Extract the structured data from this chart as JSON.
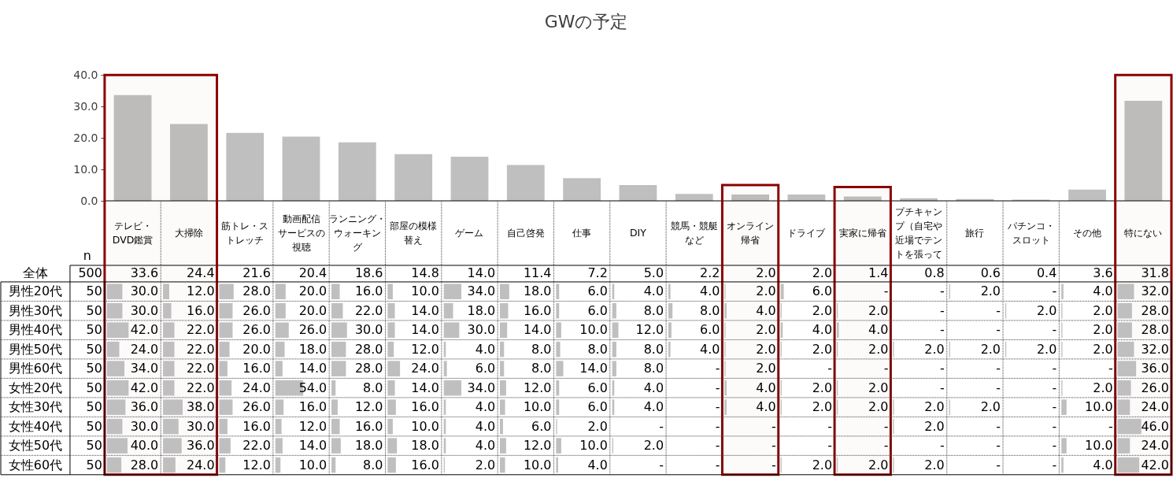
{
  "chart_data": [
    {
      "type": "bar",
      "title": "GWの予定",
      "categories": [
        "テレビ・DVD鑑賞",
        "大掃除",
        "筋トレ・ストレッチ",
        "動画配信サービスの視聴",
        "ランニング・ウォーキング",
        "部屋の模様替え",
        "ゲーム",
        "自己啓発",
        "仕事",
        "DIY",
        "競馬・競艇など",
        "オンライン帰省",
        "ドライブ",
        "実家に帰省",
        "プチキャンプ（自宅や近場でテントを張って",
        "旅行",
        "パチンコ・スロット",
        "その他",
        "特にない"
      ],
      "series": [
        {
          "name": "全体",
          "color": "#bfbfbf",
          "values": [
            33.6,
            24.4,
            21.6,
            20.4,
            18.6,
            14.8,
            14.0,
            11.4,
            7.2,
            5.0,
            2.2,
            2.0,
            2.0,
            1.4,
            0.8,
            0.6,
            0.4,
            3.6,
            31.8
          ],
          "value_labels": [
            "33.6",
            "24.4",
            "21.6",
            "20.4",
            "18.6",
            "14.8",
            "14.0",
            "11.4",
            "7.2",
            "5.0",
            "2.2",
            "2.0",
            "2.0",
            "1.4",
            "0.8",
            "0.6",
            "0.4",
            "3.6",
            "31.8"
          ]
        }
      ],
      "ylim": [
        0,
        40
      ],
      "yticks": [
        {
          "value": 0,
          "label": "0.0"
        },
        {
          "value": 10,
          "label": "10.0"
        },
        {
          "value": 20,
          "label": "20.0"
        },
        {
          "value": 30,
          "label": "30.0"
        },
        {
          "value": 40,
          "label": "40.0"
        }
      ],
      "bands": [
        {
          "axis": "x",
          "from": "テレビ・DVD鑑賞",
          "to": "大掃除",
          "color": "#8b0000"
        },
        {
          "axis": "x",
          "from": "オンライン帰省",
          "to": "オンライン帰省",
          "color": "#8b0000"
        },
        {
          "axis": "x",
          "from": "実家に帰省",
          "to": "実家に帰省",
          "color": "#8b0000"
        },
        {
          "axis": "x",
          "from": "特にない",
          "to": "特にない",
          "color": "#8b0000"
        }
      ],
      "annotations": [
        "n",
        "500"
      ]
    },
    {
      "type": "heatmap",
      "categories": [
        null,
        null,
        null,
        null,
        null,
        null,
        null,
        null,
        null,
        null,
        null,
        null,
        null,
        null,
        null,
        null,
        null,
        null,
        null
      ],
      "y_categories": [
        "男性20代",
        "男性30代",
        "男性40代",
        "男性50代",
        "男性60代",
        "女性20代",
        "女性30代",
        "女性40代",
        "女性50代",
        "女性60代"
      ],
      "y2_categories": [
        "50",
        "50",
        "50",
        "50",
        "50",
        "50",
        "50",
        "50",
        "50",
        "50"
      ],
      "cells": [
        [
          30.0,
          12.0,
          28.0,
          20.0,
          16.0,
          10.0,
          34.0,
          18.0,
          6.0,
          4.0,
          4.0,
          2.0,
          6.0,
          null,
          null,
          2.0,
          null,
          4.0,
          32.0
        ],
        [
          30.0,
          16.0,
          26.0,
          20.0,
          22.0,
          14.0,
          18.0,
          16.0,
          6.0,
          8.0,
          8.0,
          4.0,
          2.0,
          2.0,
          null,
          null,
          2.0,
          2.0,
          28.0
        ],
        [
          42.0,
          22.0,
          26.0,
          26.0,
          30.0,
          14.0,
          30.0,
          14.0,
          10.0,
          12.0,
          6.0,
          2.0,
          4.0,
          4.0,
          null,
          null,
          null,
          2.0,
          28.0
        ],
        [
          24.0,
          22.0,
          20.0,
          18.0,
          28.0,
          12.0,
          4.0,
          8.0,
          8.0,
          8.0,
          4.0,
          2.0,
          2.0,
          2.0,
          2.0,
          2.0,
          2.0,
          2.0,
          32.0
        ],
        [
          34.0,
          22.0,
          16.0,
          14.0,
          28.0,
          24.0,
          6.0,
          8.0,
          14.0,
          8.0,
          null,
          2.0,
          null,
          null,
          null,
          null,
          null,
          null,
          36.0
        ],
        [
          42.0,
          22.0,
          24.0,
          54.0,
          8.0,
          14.0,
          34.0,
          12.0,
          6.0,
          4.0,
          null,
          4.0,
          2.0,
          2.0,
          null,
          null,
          null,
          2.0,
          26.0
        ],
        [
          36.0,
          38.0,
          26.0,
          16.0,
          12.0,
          16.0,
          4.0,
          10.0,
          6.0,
          4.0,
          null,
          4.0,
          2.0,
          2.0,
          2.0,
          2.0,
          null,
          10.0,
          24.0
        ],
        [
          30.0,
          30.0,
          16.0,
          12.0,
          16.0,
          10.0,
          4.0,
          6.0,
          2.0,
          null,
          null,
          null,
          null,
          null,
          2.0,
          null,
          null,
          null,
          46.0
        ],
        [
          40.0,
          36.0,
          22.0,
          14.0,
          18.0,
          18.0,
          4.0,
          12.0,
          10.0,
          2.0,
          null,
          null,
          null,
          null,
          null,
          null,
          null,
          10.0,
          24.0
        ],
        [
          28.0,
          24.0,
          12.0,
          10.0,
          8.0,
          16.0,
          2.0,
          10.0,
          4.0,
          null,
          null,
          null,
          2.0,
          2.0,
          2.0,
          null,
          null,
          4.0,
          42.0
        ]
      ],
      "cell_labels": [
        [
          "30.0",
          "12.0",
          "28.0",
          "20.0",
          "16.0",
          "10.0",
          "34.0",
          "18.0",
          "6.0",
          "4.0",
          "4.0",
          "2.0",
          "6.0",
          "-",
          "-",
          "2.0",
          "-",
          "4.0",
          "32.0"
        ],
        [
          "30.0",
          "16.0",
          "26.0",
          "20.0",
          "22.0",
          "14.0",
          "18.0",
          "16.0",
          "6.0",
          "8.0",
          "8.0",
          "4.0",
          "2.0",
          "2.0",
          "-",
          "-",
          "2.0",
          "2.0",
          "28.0"
        ],
        [
          "42.0",
          "22.0",
          "26.0",
          "26.0",
          "30.0",
          "14.0",
          "30.0",
          "14.0",
          "10.0",
          "12.0",
          "6.0",
          "2.0",
          "4.0",
          "4.0",
          "-",
          "-",
          "-",
          "2.0",
          "28.0"
        ],
        [
          "24.0",
          "22.0",
          "20.0",
          "18.0",
          "28.0",
          "12.0",
          "4.0",
          "8.0",
          "8.0",
          "8.0",
          "4.0",
          "2.0",
          "2.0",
          "2.0",
          "2.0",
          "2.0",
          "2.0",
          "2.0",
          "32.0"
        ],
        [
          "34.0",
          "22.0",
          "16.0",
          "14.0",
          "28.0",
          "24.0",
          "6.0",
          "8.0",
          "14.0",
          "8.0",
          "-",
          "2.0",
          "-",
          "-",
          "-",
          "-",
          "-",
          "-",
          "36.0"
        ],
        [
          "42.0",
          "22.0",
          "24.0",
          "54.0",
          "8.0",
          "14.0",
          "34.0",
          "12.0",
          "6.0",
          "4.0",
          "-",
          "4.0",
          "2.0",
          "2.0",
          "-",
          "-",
          "-",
          "2.0",
          "26.0"
        ],
        [
          "36.0",
          "38.0",
          "26.0",
          "16.0",
          "12.0",
          "16.0",
          "4.0",
          "10.0",
          "6.0",
          "4.0",
          "-",
          "4.0",
          "2.0",
          "2.0",
          "2.0",
          "2.0",
          "-",
          "10.0",
          "24.0"
        ],
        [
          "30.0",
          "30.0",
          "16.0",
          "12.0",
          "16.0",
          "10.0",
          "4.0",
          "6.0",
          "2.0",
          "-",
          "-",
          "-",
          "-",
          "-",
          "2.0",
          "-",
          "-",
          "-",
          "46.0"
        ],
        [
          "40.0",
          "36.0",
          "22.0",
          "14.0",
          "18.0",
          "18.0",
          "4.0",
          "12.0",
          "10.0",
          "2.0",
          "-",
          "-",
          "-",
          "-",
          "-",
          "-",
          "-",
          "10.0",
          "24.0"
        ],
        [
          "28.0",
          "24.0",
          "12.0",
          "10.0",
          "8.0",
          "16.0",
          "2.0",
          "10.0",
          "4.0",
          "-",
          "-",
          "-",
          "2.0",
          "2.0",
          "2.0",
          "-",
          "-",
          "4.0",
          "42.0"
        ]
      ],
      "color": "#bfbfbf",
      "tick_labels": "y"
    }
  ]
}
